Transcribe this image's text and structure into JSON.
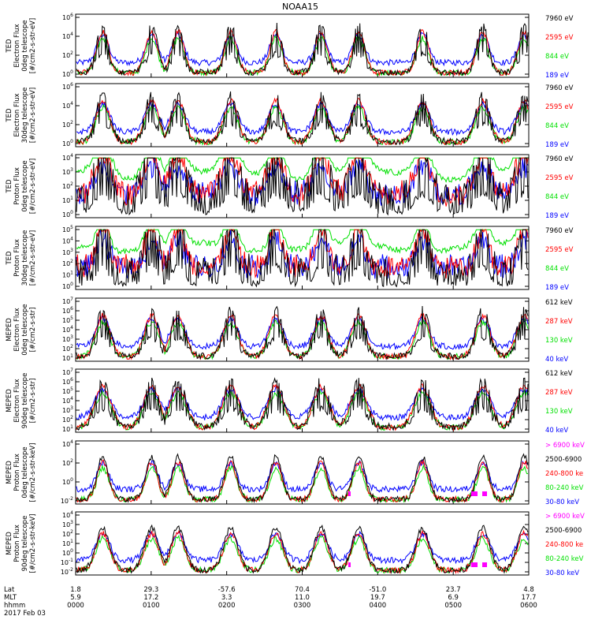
{
  "title": "NOAA15",
  "panels": [
    {
      "ylabel": [
        "TED",
        "Electron Flux",
        "0deg telescope",
        "[#/cm2-s-str-eV]"
      ],
      "yticks": [
        "10^6",
        "10^4",
        "10^2",
        "10^0"
      ],
      "legend": [
        {
          "label": "7960 eV",
          "color": "#000000"
        },
        {
          "label": "2595 eV",
          "color": "#ff0000"
        },
        {
          "label": "844 eV",
          "color": "#00e000"
        },
        {
          "label": "189 eV",
          "color": "#0000ff"
        }
      ]
    },
    {
      "ylabel": [
        "TED",
        "Electron Flux",
        "30deg telescope",
        "[#/cm2-s-str-eV]"
      ],
      "yticks": [
        "10^6",
        "10^4",
        "10^2",
        "10^0"
      ],
      "legend": [
        {
          "label": "7960 eV",
          "color": "#000000"
        },
        {
          "label": "2595 eV",
          "color": "#ff0000"
        },
        {
          "label": "844 eV",
          "color": "#00e000"
        },
        {
          "label": "189 eV",
          "color": "#0000ff"
        }
      ]
    },
    {
      "ylabel": [
        "TED",
        "Proton Flux",
        "0deg telescope",
        "[#/cm2-s-str-eV]"
      ],
      "yticks": [
        "10^4",
        "10^3",
        "10^2",
        "10^1",
        "10^0"
      ],
      "legend": [
        {
          "label": "7960 eV",
          "color": "#000000"
        },
        {
          "label": "2595 eV",
          "color": "#ff0000"
        },
        {
          "label": "844 eV",
          "color": "#00e000"
        },
        {
          "label": "189 eV",
          "color": "#0000ff"
        }
      ]
    },
    {
      "ylabel": [
        "TED",
        "Proton Flux",
        "30deg telescope",
        "[#/cm2-s-str-eV]"
      ],
      "yticks": [
        "10^5",
        "10^4",
        "10^3",
        "10^2",
        "10^1",
        "10^0"
      ],
      "legend": [
        {
          "label": "7960 eV",
          "color": "#000000"
        },
        {
          "label": "2595 eV",
          "color": "#ff0000"
        },
        {
          "label": "844 eV",
          "color": "#00e000"
        },
        {
          "label": "189 eV",
          "color": "#0000ff"
        }
      ]
    },
    {
      "ylabel": [
        "MEPED",
        "Electron Flux",
        "0deg telescope",
        "[#/cm2-s-str]"
      ],
      "yticks": [
        "10^7",
        "10^6",
        "10^5",
        "10^4",
        "10^3",
        "10^2",
        "10^1"
      ],
      "legend": [
        {
          "label": "612 keV",
          "color": "#000000"
        },
        {
          "label": "287 keV",
          "color": "#ff0000"
        },
        {
          "label": "130 keV",
          "color": "#00e000"
        },
        {
          "label": "40 keV",
          "color": "#0000ff"
        }
      ]
    },
    {
      "ylabel": [
        "MEPED",
        "Electron Flux",
        "90deg telescope",
        "[#/cm2-s-str]"
      ],
      "yticks": [
        "10^7",
        "10^6",
        "10^5",
        "10^4",
        "10^3",
        "10^2",
        "10^1"
      ],
      "legend": [
        {
          "label": "612 keV",
          "color": "#000000"
        },
        {
          "label": "287 keV",
          "color": "#ff0000"
        },
        {
          "label": "130 keV",
          "color": "#00e000"
        },
        {
          "label": "40 keV",
          "color": "#0000ff"
        }
      ]
    },
    {
      "ylabel": [
        "MEPED",
        "Proton Flux",
        "0deg telescope",
        "[#/cm2-s-str-keV]"
      ],
      "yticks": [
        "10^4",
        "10^2",
        "10^0",
        "10^-2"
      ],
      "legend": [
        {
          "label": "> 6900 keV",
          "color": "#ff00ff"
        },
        {
          "label": "2500-6900",
          "color": "#000000"
        },
        {
          "label": "240-800 ke",
          "color": "#ff0000"
        },
        {
          "label": "80-240 keV",
          "color": "#00e000"
        },
        {
          "label": "30-80 keV",
          "color": "#0000ff"
        }
      ]
    },
    {
      "ylabel": [
        "MEPED",
        "Proton Flux",
        "90deg telescope",
        "[#/cm2-s-str-keV]"
      ],
      "yticks": [
        "10^4",
        "10^3",
        "10^2",
        "10^1",
        "10^0",
        "10^-1",
        "10^-2"
      ],
      "legend": [
        {
          "label": "> 6900 keV",
          "color": "#ff00ff"
        },
        {
          "label": "2500-6900",
          "color": "#000000"
        },
        {
          "label": "240-800 ke",
          "color": "#ff0000"
        },
        {
          "label": "80-240 keV",
          "color": "#00e000"
        },
        {
          "label": "30-80 keV",
          "color": "#0000ff"
        }
      ]
    }
  ],
  "footer": {
    "row_labels": [
      "Lat",
      "MLT",
      "hhmm",
      "2017 Feb 03"
    ],
    "ticks": [
      {
        "lat": "1.8",
        "mlt": "5.9",
        "hhmm": "0000"
      },
      {
        "lat": "29.3",
        "mlt": "17.2",
        "hhmm": "0100"
      },
      {
        "lat": "-57.6",
        "mlt": "3.3",
        "hhmm": "0200"
      },
      {
        "lat": "70.4",
        "mlt": "11.0",
        "hhmm": "0300"
      },
      {
        "lat": "-51.0",
        "mlt": "19.7",
        "hhmm": "0400"
      },
      {
        "lat": "23.7",
        "mlt": "6.9",
        "hhmm": "0500"
      },
      {
        "lat": "4.8",
        "mlt": "17.7",
        "hhmm": "0600"
      }
    ]
  },
  "chart_data": {
    "type": "line",
    "title": "NOAA15",
    "x_range": [
      "0000",
      "0600"
    ],
    "note_series": "Time series of particle flux (log scale) for 8 panels; burst times approximate in hours UT",
    "bursts_hours": [
      0.35,
      1.0,
      1.35,
      2.05,
      2.65,
      3.25,
      3.75,
      4.6,
      5.4,
      5.95
    ],
    "panels": [
      {
        "name": "TED Electron 0deg",
        "ylim": [
          1,
          1000000
        ],
        "series": [
          "7960 eV",
          "2595 eV",
          "844 eV",
          "189 eV"
        ]
      },
      {
        "name": "TED Electron 30deg",
        "ylim": [
          1,
          1000000
        ],
        "series": [
          "7960 eV",
          "2595 eV",
          "844 eV",
          "189 eV"
        ]
      },
      {
        "name": "TED Proton 0deg",
        "ylim": [
          1,
          10000
        ],
        "series": [
          "7960 eV",
          "2595 eV",
          "844 eV",
          "189 eV"
        ]
      },
      {
        "name": "TED Proton 30deg",
        "ylim": [
          1,
          100000
        ],
        "series": [
          "7960 eV",
          "2595 eV",
          "844 eV",
          "189 eV"
        ]
      },
      {
        "name": "MEPED Electron 0deg",
        "ylim": [
          10,
          10000000
        ],
        "series": [
          "612 keV",
          "287 keV",
          "130 keV",
          "40 keV"
        ]
      },
      {
        "name": "MEPED Electron 90deg",
        "ylim": [
          10,
          10000000
        ],
        "series": [
          "612 keV",
          "287 keV",
          "130 keV",
          "40 keV"
        ]
      },
      {
        "name": "MEPED Proton 0deg",
        "ylim": [
          0.01,
          10000
        ],
        "series": [
          "> 6900 keV",
          "2500-6900",
          "240-800 ke",
          "80-240 keV",
          "30-80 keV"
        ]
      },
      {
        "name": "MEPED Proton 90deg",
        "ylim": [
          0.01,
          10000
        ],
        "series": [
          "> 6900 keV",
          "2500-6900",
          "240-800 ke",
          "80-240 keV",
          "30-80 keV"
        ]
      }
    ]
  }
}
